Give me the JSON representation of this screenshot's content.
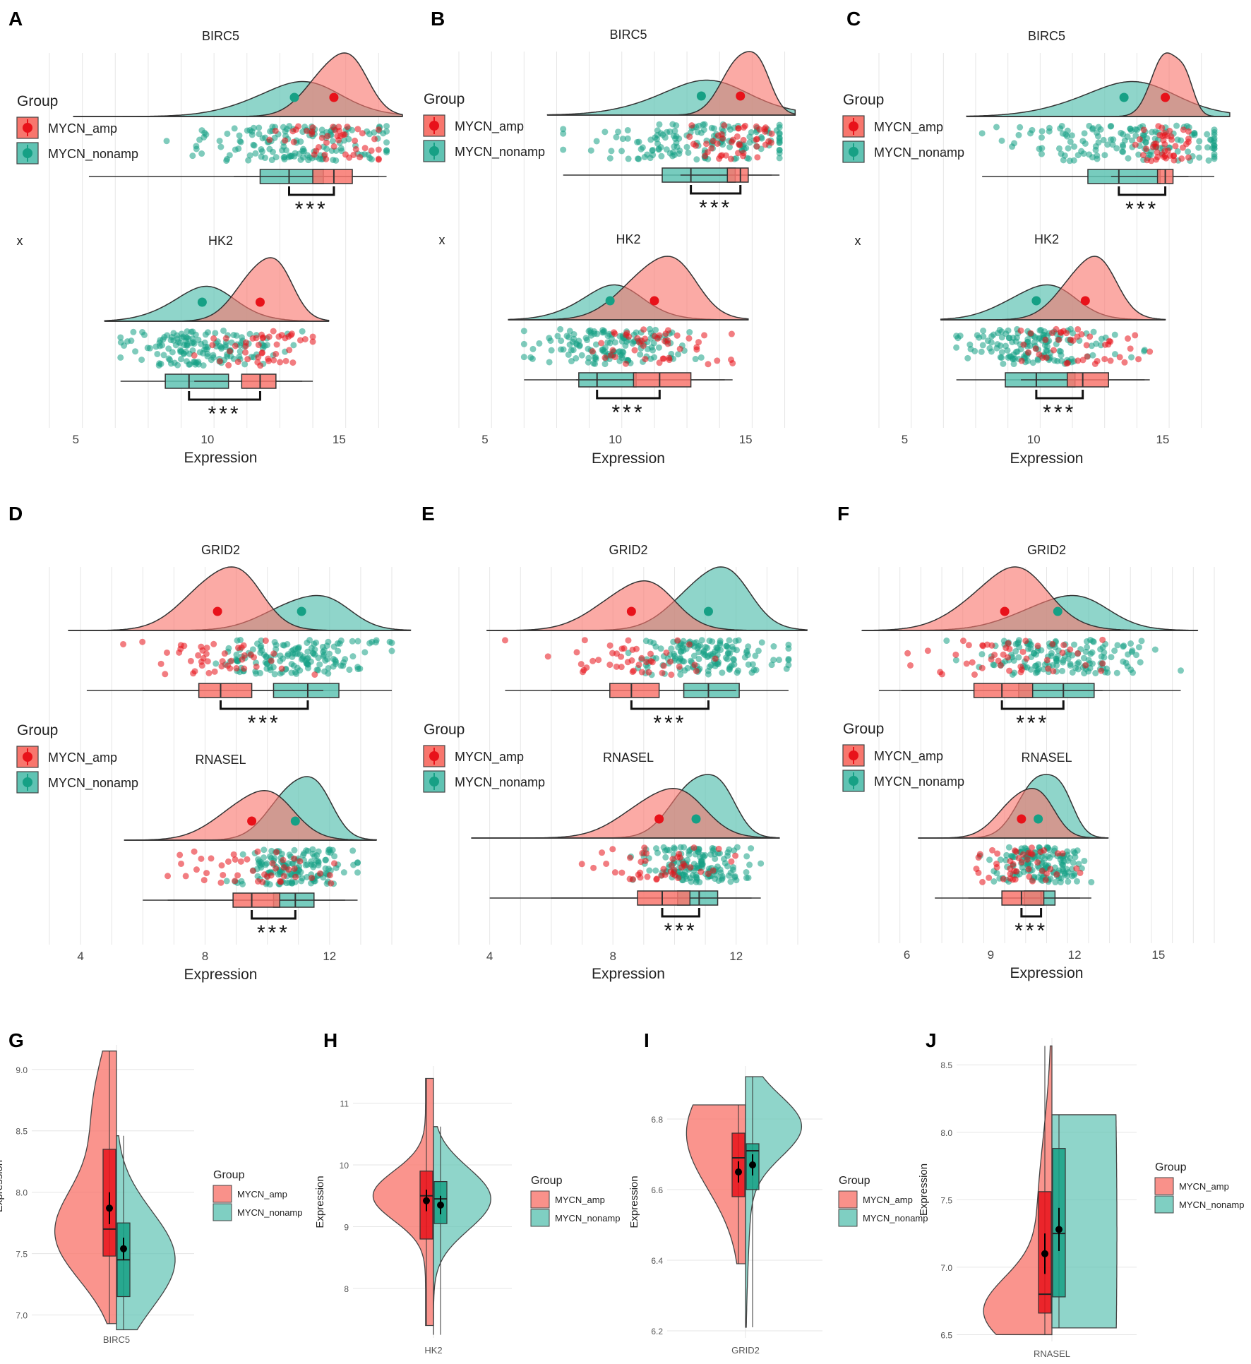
{
  "colors": {
    "amp": "#f8766d",
    "amp_dark": "#e8121a",
    "nonamp": "#5fc3b3",
    "nonamp_dark": "#16a085",
    "overlap": "#8a8a80",
    "grid": "#e6e6e6",
    "line": "#333333",
    "text": "#222222"
  },
  "significance": "***",
  "chart_data": [
    {
      "panel": "A",
      "type": "raincloud",
      "xlabel": "Expression",
      "xlim": [
        4,
        17
      ],
      "xticks": [
        5,
        10,
        15
      ],
      "y_axis_mark": "x",
      "legend": {
        "title": "Group",
        "items": [
          "MYCN_amp",
          "MYCN_nonamp"
        ],
        "placement": "top-left"
      },
      "genes": [
        {
          "name": "BIRC5",
          "amp": {
            "mean": 14.8,
            "sd": 1.1,
            "q1": 14.0,
            "median": 14.8,
            "q3": 15.5,
            "min": 11.0,
            "max": 16.5
          },
          "nonamp": {
            "mean": 13.3,
            "sd": 2.0,
            "q1": 12.0,
            "median": 13.1,
            "q3": 14.4,
            "min": 5.5,
            "max": 16.8
          }
        },
        {
          "name": "HK2",
          "amp": {
            "mean": 12.0,
            "sd": 1.0,
            "q1": 11.3,
            "median": 12.0,
            "q3": 12.6,
            "min": 9.5,
            "max": 14.0
          },
          "nonamp": {
            "mean": 9.8,
            "sd": 1.5,
            "q1": 8.4,
            "median": 9.3,
            "q3": 10.8,
            "min": 6.7,
            "max": 13.6
          }
        }
      ]
    },
    {
      "panel": "B",
      "type": "raincloud",
      "xlabel": "Expression",
      "xlim": [
        4,
        17
      ],
      "xticks": [
        5,
        10,
        15
      ],
      "y_axis_mark": "x",
      "legend": {
        "title": "Group",
        "items": [
          "MYCN_amp",
          "MYCN_nonamp"
        ],
        "placement": "top-left"
      },
      "genes": [
        {
          "name": "BIRC5",
          "amp": {
            "mean": 14.8,
            "sd": 0.8,
            "q1": 14.3,
            "median": 14.8,
            "q3": 15.1,
            "min": 12.5,
            "max": 16.0
          },
          "nonamp": {
            "mean": 13.3,
            "sd": 2.2,
            "q1": 11.8,
            "median": 12.9,
            "q3": 14.6,
            "min": 8.0,
            "max": 16.3
          }
        },
        {
          "name": "HK2",
          "amp": {
            "mean": 11.5,
            "sd": 1.4,
            "q1": 10.7,
            "median": 11.7,
            "q3": 12.9,
            "min": 8.5,
            "max": 14.5
          },
          "nonamp": {
            "mean": 9.8,
            "sd": 1.5,
            "q1": 8.6,
            "median": 9.3,
            "q3": 10.8,
            "min": 6.5,
            "max": 14.2
          }
        }
      ]
    },
    {
      "panel": "C",
      "type": "raincloud",
      "xlabel": "Expression",
      "xlim": [
        4,
        17
      ],
      "xticks": [
        5,
        10,
        15
      ],
      "y_axis_mark": "x",
      "legend": {
        "title": "Group",
        "items": [
          "MYCN_amp",
          "MYCN_nonamp"
        ],
        "placement": "top-left"
      },
      "genes": [
        {
          "name": "BIRC5",
          "amp": {
            "mean": 15.1,
            "sd": 0.6,
            "q1": 14.8,
            "median": 15.1,
            "q3": 15.4,
            "min": 13.0,
            "max": 16.0
          },
          "nonamp": {
            "mean": 13.5,
            "sd": 2.3,
            "q1": 12.1,
            "median": 13.3,
            "q3": 14.9,
            "min": 8.0,
            "max": 17.0
          }
        },
        {
          "name": "HK2",
          "amp": {
            "mean": 12.0,
            "sd": 1.1,
            "q1": 11.3,
            "median": 11.9,
            "q3": 12.9,
            "min": 9.5,
            "max": 14.5
          },
          "nonamp": {
            "mean": 10.1,
            "sd": 1.5,
            "q1": 8.9,
            "median": 10.1,
            "q3": 11.6,
            "min": 7.0,
            "max": 14.3
          }
        }
      ]
    },
    {
      "panel": "D",
      "type": "raincloud",
      "xlabel": "Expression",
      "xlim": [
        3,
        14
      ],
      "xticks": [
        4,
        8,
        12
      ],
      "y_axis_mark": "",
      "legend": {
        "title": "Group",
        "items": [
          "MYCN_amp",
          "MYCN_nonamp"
        ],
        "placement": "middle-left"
      },
      "genes": [
        {
          "name": "GRID2",
          "amp": {
            "mean": 8.4,
            "sd": 1.2,
            "q1": 7.8,
            "median": 8.5,
            "q3": 9.5,
            "min": 4.2,
            "max": 11.8
          },
          "nonamp": {
            "mean": 11.1,
            "sd": 1.3,
            "q1": 10.2,
            "median": 11.3,
            "q3": 12.3,
            "min": 6.0,
            "max": 14.0
          }
        },
        {
          "name": "RNASEL",
          "amp": {
            "mean": 9.5,
            "sd": 1.2,
            "q1": 8.9,
            "median": 9.5,
            "q3": 10.4,
            "min": 6.8,
            "max": 12.5
          },
          "nonamp": {
            "mean": 10.9,
            "sd": 0.9,
            "q1": 10.2,
            "median": 10.9,
            "q3": 11.5,
            "min": 6.0,
            "max": 12.9
          }
        }
      ]
    },
    {
      "panel": "E",
      "type": "raincloud",
      "xlabel": "Expression",
      "xlim": [
        3,
        14
      ],
      "xticks": [
        4,
        8,
        12
      ],
      "y_axis_mark": "",
      "legend": {
        "title": "Group",
        "items": [
          "MYCN_amp",
          "MYCN_nonamp"
        ],
        "placement": "middle-left"
      },
      "genes": [
        {
          "name": "GRID2",
          "amp": {
            "mean": 8.6,
            "sd": 1.3,
            "q1": 7.9,
            "median": 8.6,
            "q3": 9.5,
            "min": 4.5,
            "max": 12.0
          },
          "nonamp": {
            "mean": 11.1,
            "sd": 1.2,
            "q1": 10.3,
            "median": 11.1,
            "q3": 12.1,
            "min": 6.0,
            "max": 13.7
          }
        },
        {
          "name": "RNASEL",
          "amp": {
            "mean": 9.5,
            "sd": 1.3,
            "q1": 8.8,
            "median": 9.6,
            "q3": 10.5,
            "min": 4.0,
            "max": 12.5
          },
          "nonamp": {
            "mean": 10.7,
            "sd": 0.9,
            "q1": 10.1,
            "median": 10.8,
            "q3": 11.4,
            "min": 6.0,
            "max": 12.8
          }
        }
      ]
    },
    {
      "panel": "F",
      "type": "raincloud",
      "xlabel": "Expression",
      "xlim": [
        5,
        17
      ],
      "xticks": [
        6,
        9,
        12,
        15
      ],
      "y_axis_mark": "",
      "legend": {
        "title": "Group",
        "items": [
          "MYCN_amp",
          "MYCN_nonamp"
        ],
        "placement": "middle-left"
      },
      "genes": [
        {
          "name": "GRID2",
          "amp": {
            "mean": 9.5,
            "sd": 1.6,
            "q1": 8.4,
            "median": 9.4,
            "q3": 10.5,
            "min": 5.0,
            "max": 13.0
          },
          "nonamp": {
            "mean": 11.4,
            "sd": 1.7,
            "q1": 10.0,
            "median": 11.6,
            "q3": 12.7,
            "min": 5.8,
            "max": 15.8
          }
        },
        {
          "name": "RNASEL",
          "amp": {
            "mean": 10.1,
            "sd": 0.9,
            "q1": 9.4,
            "median": 10.1,
            "q3": 10.9,
            "min": 8.2,
            "max": 12.2
          },
          "nonamp": {
            "mean": 10.7,
            "sd": 0.8,
            "q1": 10.2,
            "median": 10.8,
            "q3": 11.3,
            "min": 7.0,
            "max": 12.6
          }
        }
      ]
    },
    {
      "panel": "G",
      "type": "violin",
      "gene": "BIRC5",
      "ylabel": "Expression",
      "ylim": [
        6.9,
        9.2
      ],
      "yticks": [
        "7.0",
        "7.5",
        "8.0",
        "8.5",
        "9.0"
      ],
      "legend": {
        "title": "Group",
        "items": [
          "MYCN_amp",
          "MYCN_nonamp"
        ],
        "placement": "right"
      },
      "amp": {
        "min": 6.93,
        "max": 9.15,
        "q1": 7.48,
        "median": 7.7,
        "q3": 8.35,
        "mean": 7.87,
        "ci": [
          7.74,
          8.0
        ]
      },
      "nonamp": {
        "min": 6.88,
        "max": 8.46,
        "q1": 7.15,
        "median": 7.45,
        "q3": 7.75,
        "mean": 7.54,
        "ci": [
          7.45,
          7.63
        ]
      }
    },
    {
      "panel": "H",
      "type": "violin",
      "gene": "HK2",
      "ylabel": "Expression",
      "ylim": [
        7.2,
        11.6
      ],
      "yticks": [
        "8",
        "9",
        "10",
        "11"
      ],
      "legend": {
        "title": "Group",
        "items": [
          "MYCN_amp",
          "MYCN_nonamp"
        ],
        "placement": "right"
      },
      "amp": {
        "min": 7.4,
        "max": 11.4,
        "q1": 8.8,
        "median": 9.5,
        "q3": 9.9,
        "mean": 9.42,
        "ci": [
          9.25,
          9.6
        ]
      },
      "nonamp": {
        "min": 7.25,
        "max": 10.62,
        "q1": 9.05,
        "median": 9.45,
        "q3": 9.73,
        "mean": 9.35,
        "ci": [
          9.2,
          9.5
        ]
      }
    },
    {
      "panel": "I",
      "type": "violin",
      "gene": "GRID2",
      "ylabel": "Expression",
      "ylim": [
        6.18,
        6.95
      ],
      "yticks": [
        "6.2",
        "6.4",
        "6.6",
        "6.8"
      ],
      "legend": {
        "title": "Group",
        "items": [
          "MYCN_amp",
          "MYCN_nonamp"
        ],
        "placement": "right"
      },
      "amp": {
        "min": 6.39,
        "max": 6.84,
        "q1": 6.58,
        "median": 6.69,
        "q3": 6.76,
        "mean": 6.65,
        "ci": [
          6.62,
          6.68
        ]
      },
      "nonamp": {
        "min": 6.21,
        "max": 6.92,
        "q1": 6.6,
        "median": 6.71,
        "q3": 6.73,
        "mean": 6.67,
        "ci": [
          6.64,
          6.7
        ]
      }
    },
    {
      "panel": "J",
      "type": "violin",
      "gene": "RNASEL",
      "ylabel": "Expression",
      "ylim": [
        6.45,
        8.7
      ],
      "yticks": [
        "6.5",
        "7.0",
        "7.5",
        "8.0",
        "8.5"
      ],
      "legend": {
        "title": "Group",
        "items": [
          "MYCN_amp",
          "MYCN_nonamp"
        ],
        "placement": "right"
      },
      "amp": {
        "min": 6.5,
        "max": 8.64,
        "q1": 6.66,
        "median": 6.8,
        "q3": 7.56,
        "mean": 7.1,
        "ci": [
          6.95,
          7.25
        ]
      },
      "nonamp": {
        "min": 6.55,
        "max": 8.13,
        "q1": 6.78,
        "median": 7.25,
        "q3": 7.88,
        "mean": 7.28,
        "ci": [
          7.12,
          7.44
        ]
      }
    }
  ]
}
